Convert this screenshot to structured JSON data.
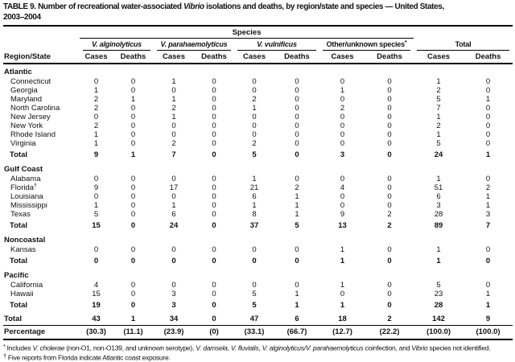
{
  "title": {
    "prefix": "TABLE 9. Number of recreational water-associated ",
    "italic": "Vibrio",
    "suffix": " isolations and deaths, by region/state and species — United States,",
    "line2": "2003–2004"
  },
  "columns": {
    "spanner": "Species",
    "region": "Region/State",
    "sub": [
      "Cases",
      "Deaths"
    ],
    "groups": [
      {
        "label": "V. alginolyticus",
        "italic": true
      },
      {
        "label": "V. parahaemolyticus",
        "italic": true
      },
      {
        "label": "V. vulnificus",
        "italic": true
      },
      {
        "label": "Other/unknown species",
        "sup": "*",
        "italic": false
      },
      {
        "label": "Total",
        "italic": false
      }
    ]
  },
  "sections": [
    {
      "name": "Atlantic",
      "rows": [
        {
          "label": "Connecticut",
          "values": [
            0,
            0,
            1,
            0,
            0,
            0,
            0,
            0,
            1,
            0
          ]
        },
        {
          "label": "Georgia",
          "values": [
            1,
            0,
            0,
            0,
            0,
            0,
            1,
            0,
            2,
            0
          ]
        },
        {
          "label": "Maryland",
          "values": [
            2,
            1,
            1,
            0,
            2,
            0,
            0,
            0,
            5,
            1
          ]
        },
        {
          "label": "North Carolina",
          "values": [
            2,
            0,
            2,
            0,
            1,
            0,
            2,
            0,
            7,
            0
          ]
        },
        {
          "label": "New Jersey",
          "values": [
            0,
            0,
            1,
            0,
            0,
            0,
            0,
            0,
            1,
            0
          ]
        },
        {
          "label": "New York",
          "values": [
            2,
            0,
            0,
            0,
            0,
            0,
            0,
            0,
            2,
            0
          ]
        },
        {
          "label": "Rhode Island",
          "values": [
            1,
            0,
            0,
            0,
            0,
            0,
            0,
            0,
            1,
            0
          ]
        },
        {
          "label": "Virginia",
          "values": [
            1,
            0,
            2,
            0,
            2,
            0,
            0,
            0,
            5,
            0
          ]
        }
      ],
      "total": {
        "label": "Total",
        "values": [
          9,
          1,
          7,
          0,
          5,
          0,
          3,
          0,
          24,
          1
        ]
      }
    },
    {
      "name": "Gulf Coast",
      "rows": [
        {
          "label": "Alabama",
          "values": [
            0,
            0,
            0,
            0,
            1,
            0,
            0,
            0,
            1,
            0
          ]
        },
        {
          "label": "Florida",
          "sup": "†",
          "values": [
            9,
            0,
            17,
            0,
            21,
            2,
            4,
            0,
            51,
            2
          ]
        },
        {
          "label": "Louisiana",
          "values": [
            0,
            0,
            0,
            0,
            6,
            1,
            0,
            0,
            6,
            1
          ]
        },
        {
          "label": "Mississippi",
          "values": [
            1,
            0,
            1,
            0,
            1,
            1,
            0,
            0,
            3,
            1
          ]
        },
        {
          "label": "Texas",
          "values": [
            5,
            0,
            6,
            0,
            8,
            1,
            9,
            2,
            28,
            3
          ]
        }
      ],
      "total": {
        "label": "Total",
        "values": [
          15,
          0,
          24,
          0,
          37,
          5,
          13,
          2,
          89,
          7
        ]
      }
    },
    {
      "name": "Noncoastal",
      "rows": [
        {
          "label": "Kansas",
          "values": [
            0,
            0,
            0,
            0,
            0,
            0,
            1,
            0,
            1,
            0
          ]
        }
      ],
      "total": {
        "label": "Total",
        "values": [
          0,
          0,
          0,
          0,
          0,
          0,
          1,
          0,
          1,
          0
        ]
      }
    },
    {
      "name": "Pacific",
      "rows": [
        {
          "label": "California",
          "values": [
            4,
            0,
            0,
            0,
            0,
            0,
            1,
            0,
            5,
            0
          ]
        },
        {
          "label": "Hawaii",
          "values": [
            15,
            0,
            3,
            0,
            5,
            1,
            0,
            0,
            23,
            1
          ]
        }
      ],
      "total": {
        "label": "Total",
        "values": [
          19,
          0,
          3,
          0,
          5,
          1,
          1,
          0,
          28,
          1
        ]
      }
    }
  ],
  "grand_total": {
    "label": "Total",
    "values": [
      43,
      1,
      34,
      0,
      47,
      6,
      18,
      2,
      142,
      9
    ]
  },
  "percentage": {
    "label": "Percentage",
    "values": [
      "(30.3)",
      "(11.1)",
      "(23.9)",
      "(0)",
      "(33.1)",
      "(66.7)",
      "(12.7)",
      "(22.2)",
      "(100.0)",
      "(100.0)"
    ]
  },
  "footnotes": [
    {
      "marker": "*",
      "segments": [
        [
          "Includes ",
          "n"
        ],
        [
          "V. cholerae",
          "i"
        ],
        [
          " (non-O1, non-O139, and unknown serotype), ",
          "n"
        ],
        [
          "V. damsela",
          "i"
        ],
        [
          ", ",
          "n"
        ],
        [
          "V. fluvialis",
          "i"
        ],
        [
          ", ",
          "n"
        ],
        [
          "V. alginolyticus/V. parahaemolyticus",
          "i"
        ],
        [
          " coinfection, and ",
          "n"
        ],
        [
          "Vibrio",
          "i"
        ],
        [
          " species not identified.",
          "n"
        ]
      ]
    },
    {
      "marker": "†",
      "segments": [
        [
          "Five reports from Florida indicate Atlantic coast exposure.",
          "n"
        ]
      ]
    }
  ]
}
